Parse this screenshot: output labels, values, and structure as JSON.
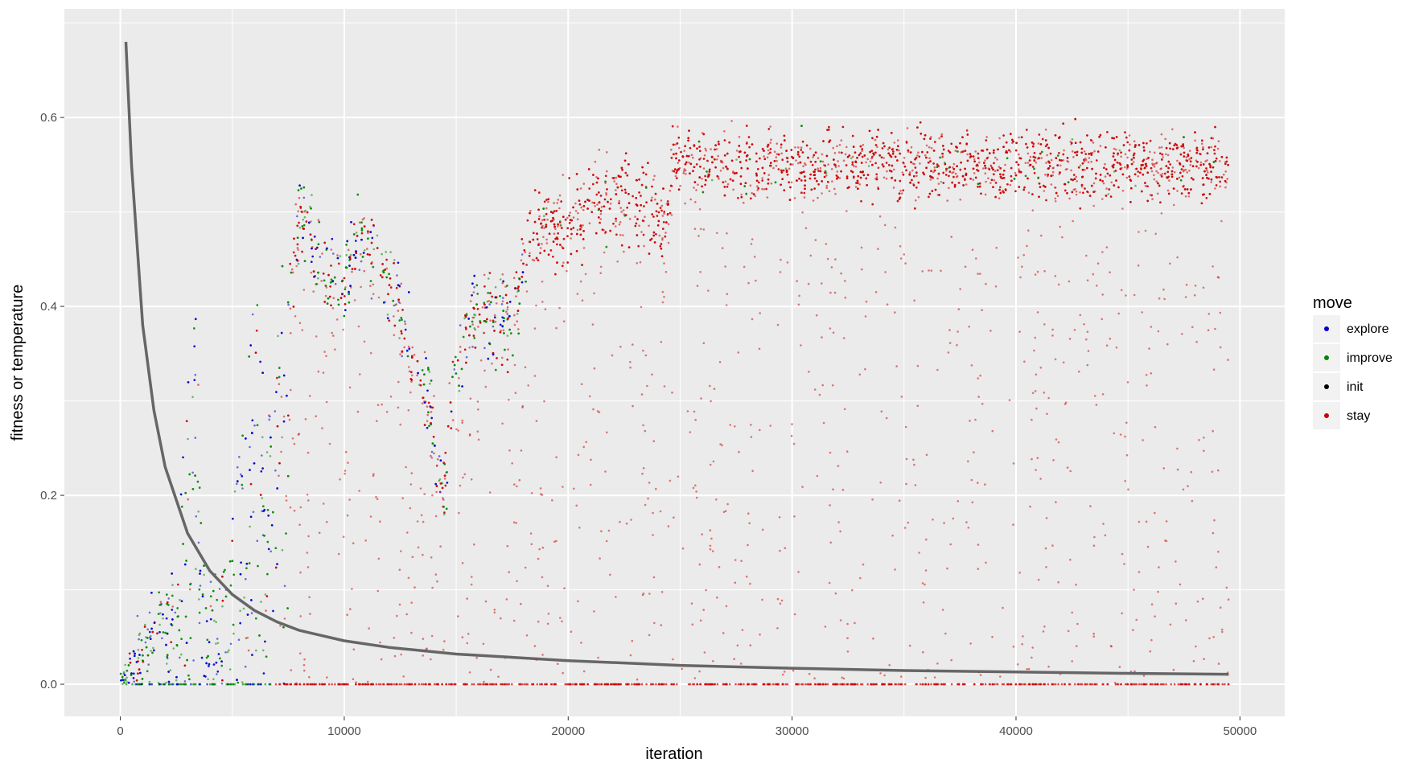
{
  "chart_data": {
    "type": "scatter",
    "title": "",
    "xlabel": "iteration",
    "ylabel": "fitness or temperature",
    "xlim": [
      -2500,
      52000
    ],
    "ylim": [
      -0.034,
      0.715
    ],
    "x_ticks": [
      0,
      10000,
      20000,
      30000,
      40000,
      50000
    ],
    "x_tick_labels": [
      "0",
      "10000",
      "20000",
      "30000",
      "40000",
      "50000"
    ],
    "y_ticks": [
      0.0,
      0.2,
      0.4,
      0.6
    ],
    "y_tick_labels": [
      "0.0",
      "0.2",
      "0.4",
      "0.6"
    ],
    "grid": true,
    "legend": {
      "title": "move",
      "placement": "right",
      "entries": [
        {
          "label": "explore",
          "color": "#0000cc"
        },
        {
          "label": "improve",
          "color": "#008800"
        },
        {
          "label": "init",
          "color": "#000000"
        },
        {
          "label": "stay",
          "color": "#cc0000"
        }
      ]
    },
    "background_color": "#ebebeb",
    "gridline_color": "#ffffff",
    "temperature_curve": {
      "color": "#666666",
      "points": [
        [
          250,
          0.68
        ],
        [
          500,
          0.55
        ],
        [
          1000,
          0.38
        ],
        [
          1500,
          0.29
        ],
        [
          2000,
          0.23
        ],
        [
          3000,
          0.16
        ],
        [
          4000,
          0.12
        ],
        [
          5000,
          0.095
        ],
        [
          6000,
          0.078
        ],
        [
          7000,
          0.066
        ],
        [
          8000,
          0.057
        ],
        [
          10000,
          0.046
        ],
        [
          12000,
          0.039
        ],
        [
          15000,
          0.032
        ],
        [
          20000,
          0.025
        ],
        [
          25000,
          0.02
        ],
        [
          30000,
          0.017
        ],
        [
          35000,
          0.0145
        ],
        [
          40000,
          0.013
        ],
        [
          45000,
          0.0115
        ],
        [
          49500,
          0.0105
        ]
      ]
    },
    "fitness_trend": [
      [
        0,
        0.0
      ],
      [
        1000,
        0.05
      ],
      [
        2500,
        0.1
      ],
      [
        3300,
        0.33
      ],
      [
        3800,
        0.08
      ],
      [
        4500,
        0.1
      ],
      [
        5500,
        0.22
      ],
      [
        6100,
        0.36
      ],
      [
        6500,
        0.2
      ],
      [
        7000,
        0.3
      ],
      [
        7500,
        0.38
      ],
      [
        8000,
        0.5
      ],
      [
        8600,
        0.47
      ],
      [
        9500,
        0.43
      ],
      [
        10000,
        0.42
      ],
      [
        10600,
        0.48
      ],
      [
        11500,
        0.46
      ],
      [
        12500,
        0.4
      ],
      [
        13200,
        0.33
      ],
      [
        13800,
        0.3
      ],
      [
        14400,
        0.2
      ],
      [
        15000,
        0.35
      ],
      [
        16000,
        0.4
      ],
      [
        17000,
        0.38
      ],
      [
        17600,
        0.4
      ],
      [
        18200,
        0.47
      ],
      [
        19000,
        0.49
      ],
      [
        20000,
        0.48
      ],
      [
        21000,
        0.51
      ],
      [
        22000,
        0.52
      ],
      [
        23000,
        0.51
      ],
      [
        24500,
        0.49
      ],
      [
        24600,
        0.55
      ],
      [
        30000,
        0.55
      ],
      [
        40000,
        0.55
      ],
      [
        49500,
        0.55
      ]
    ]
  }
}
